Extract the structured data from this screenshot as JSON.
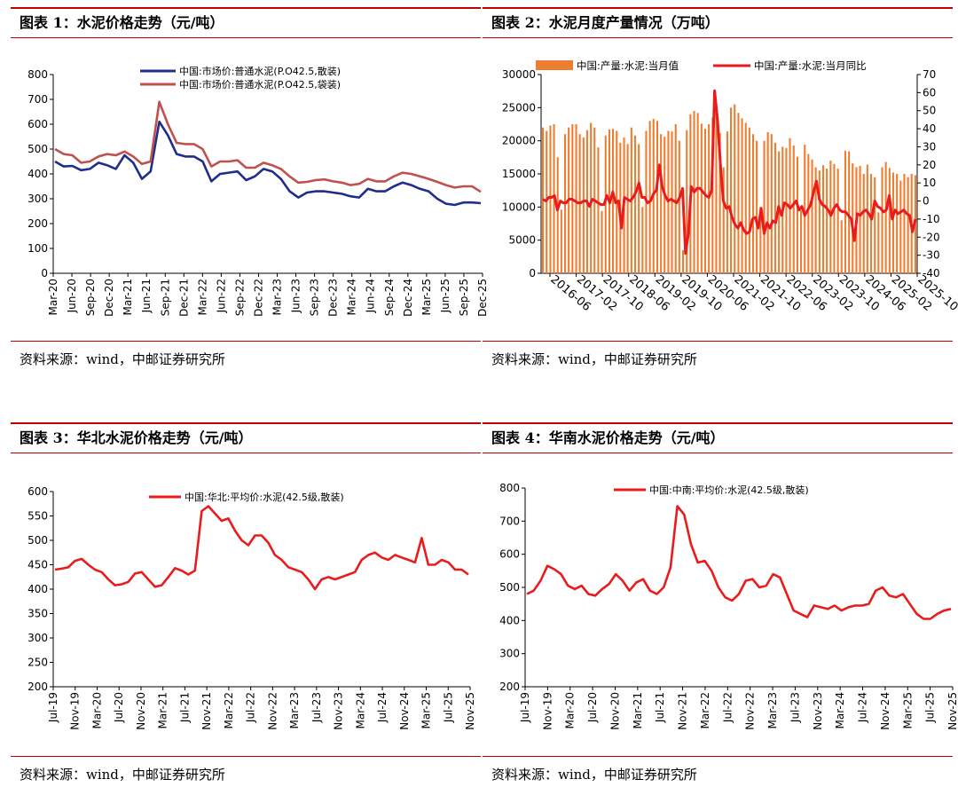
{
  "source_text": "资料来源：wind，中邮证券研究所",
  "chart_data": [
    {
      "id": "c1",
      "type": "line",
      "title": "图表 1：水泥价格走势（元/吨）",
      "ylim": [
        0,
        800
      ],
      "yticks": [
        0,
        100,
        200,
        300,
        400,
        500,
        600,
        700,
        800
      ],
      "xlabels": [
        "Mar-20",
        "Jun-20",
        "Sep-20",
        "Dec-20",
        "Mar-21",
        "Jun-21",
        "Sep-21",
        "Dec-21",
        "Mar-22",
        "Jun-22",
        "Sep-22",
        "Dec-22",
        "Mar-23",
        "Jun-23",
        "Sep-23",
        "Dec-23",
        "Mar-24",
        "Jun-24",
        "Sep-24",
        "Dec-24",
        "Mar-25",
        "Jun-25",
        "Sep-25",
        "Dec-25"
      ],
      "grid": false,
      "legend": "top-center",
      "series": [
        {
          "name": "中国:市场价:普通水泥(P.O42.5,散装)",
          "color": "#1f2d8c",
          "values": [
            450,
            430,
            432,
            415,
            420,
            445,
            435,
            420,
            475,
            445,
            380,
            410,
            610,
            555,
            480,
            470,
            470,
            450,
            370,
            400,
            405,
            410,
            375,
            390,
            420,
            410,
            380,
            330,
            305,
            325,
            330,
            330,
            325,
            320,
            310,
            305,
            340,
            330,
            330,
            350,
            365,
            355,
            340,
            330,
            300,
            280,
            275,
            285,
            285,
            282
          ]
        },
        {
          "name": "中国:市场价:普通水泥(P.O42.5,袋装)",
          "color": "#c0504d",
          "values": [
            500,
            480,
            475,
            445,
            450,
            470,
            480,
            475,
            490,
            470,
            440,
            450,
            690,
            600,
            525,
            520,
            520,
            500,
            430,
            450,
            450,
            455,
            425,
            425,
            445,
            435,
            420,
            390,
            365,
            368,
            375,
            378,
            370,
            365,
            355,
            360,
            380,
            370,
            370,
            390,
            405,
            400,
            390,
            380,
            368,
            355,
            345,
            350,
            350,
            328
          ]
        }
      ]
    },
    {
      "id": "c2",
      "type": "bar+line",
      "title": "图表 2：水泥月度产量情况（万吨）",
      "ylim": [
        0,
        30000
      ],
      "yticks": [
        0,
        5000,
        10000,
        15000,
        20000,
        25000,
        30000
      ],
      "y2lim": [
        -40,
        70
      ],
      "y2ticks": [
        -40,
        -30,
        -20,
        -10,
        0,
        10,
        20,
        30,
        40,
        50,
        60,
        70
      ],
      "xlabels": [
        "2016-06",
        "2017-02",
        "2017-10",
        "2018-06",
        "2019-02",
        "2019-10",
        "2020-06",
        "2021-02",
        "2021-10",
        "2022-06",
        "2023-02",
        "2023-10",
        "2024-06",
        "2025-02",
        "2025-10"
      ],
      "grid": false,
      "legend": "top",
      "series": [
        {
          "name": "中国:产量:水泥:当月值",
          "color": "#ed7d31",
          "values": [
            22000,
            21500,
            22300,
            22500,
            17500,
            9600,
            21000,
            22000,
            22500,
            22500,
            21000,
            20500,
            21600,
            22700,
            22000,
            19000,
            9400,
            20800,
            21700,
            21800,
            21500,
            19700,
            20500,
            19500,
            22000,
            20800,
            19500,
            10000,
            21500,
            23000,
            23300,
            23000,
            21000,
            20600,
            21500,
            21400,
            22500,
            20000,
            3500,
            21600,
            24000,
            24500,
            24200,
            22600,
            21800,
            22500,
            23500,
            25000,
            21200,
            16000,
            21400,
            25000,
            25500,
            24200,
            23400,
            22700,
            22000,
            21000,
            20000,
            10000,
            20000,
            21300,
            21000,
            19700,
            18400,
            19100,
            18900,
            20400,
            19300,
            17600,
            9500,
            19400,
            18000,
            17200,
            16000,
            15500,
            16300,
            15800,
            17000,
            16500,
            15800,
            8000,
            18500,
            18400,
            16600,
            16000,
            16200,
            15000,
            16400,
            15000,
            14500,
            9200,
            16000,
            16800,
            15900,
            15200,
            15000,
            14000,
            15000,
            14500,
            15000,
            14800
          ]
        },
        {
          "name": "中国:产量:水泥:当月同比",
          "color": "#e81c1c",
          "values": [
            1,
            0,
            2,
            2,
            3,
            -5,
            0,
            -1,
            -1,
            1,
            1,
            0,
            -1,
            -1,
            0,
            0,
            -3,
            1,
            0,
            -1,
            -2,
            -2,
            3,
            -1,
            5,
            -1,
            0,
            -15,
            2,
            1,
            0,
            2,
            5,
            10,
            2,
            2,
            -1,
            0,
            4,
            6,
            20,
            8,
            3,
            0,
            1,
            0,
            -1,
            2,
            7,
            -29,
            -18,
            8,
            5,
            7,
            7,
            5,
            3,
            2,
            6,
            61,
            45,
            20,
            0,
            -4,
            -3,
            -9,
            -13,
            -15,
            -12,
            -16,
            -18,
            -17,
            -10,
            -9,
            -15,
            -4,
            -18,
            -12,
            -15,
            -11,
            -12,
            -3,
            -8,
            -1,
            -2,
            -4,
            -2,
            0,
            -5,
            -3,
            -8,
            -5,
            -2,
            5,
            11,
            1,
            -2,
            -3,
            -5,
            -8,
            -4,
            -2,
            -5,
            -6,
            -6,
            -8,
            -10,
            -22,
            -7,
            -8,
            -6,
            -5,
            -7,
            -10,
            0,
            -3,
            -4,
            -6,
            -5,
            3,
            -10,
            -5,
            -7,
            -6,
            -5,
            -7,
            -8,
            -17,
            -10
          ]
        }
      ]
    },
    {
      "id": "c3",
      "type": "line",
      "title": "图表 3：华北水泥价格走势（元/吨）",
      "ylim": [
        200,
        600
      ],
      "yticks": [
        200,
        250,
        300,
        350,
        400,
        450,
        500,
        550,
        600
      ],
      "xlabels": [
        "Jul-19",
        "Nov-19",
        "Mar-20",
        "Jul-20",
        "Nov-20",
        "Mar-21",
        "Jul-21",
        "Nov-21",
        "Mar-22",
        "Jul-22",
        "Nov-22",
        "Mar-23",
        "Jul-23",
        "Nov-23",
        "Mar-24",
        "Jul-24",
        "Nov-24",
        "Mar-25",
        "Jul-25",
        "Nov-25"
      ],
      "grid": false,
      "legend": "top-center",
      "series": [
        {
          "name": "中国:华北:平均价:水泥(42.5级,散装)",
          "color": "#e81c1c",
          "values": [
            440,
            442,
            445,
            458,
            462,
            450,
            440,
            435,
            420,
            408,
            410,
            415,
            432,
            435,
            420,
            405,
            408,
            425,
            443,
            438,
            430,
            438,
            560,
            570,
            555,
            540,
            545,
            520,
            500,
            490,
            510,
            510,
            495,
            470,
            460,
            445,
            440,
            435,
            420,
            400,
            420,
            425,
            420,
            425,
            430,
            435,
            460,
            470,
            475,
            465,
            460,
            470,
            465,
            460,
            455,
            505,
            450,
            450,
            460,
            455,
            440,
            440,
            430
          ]
        }
      ]
    },
    {
      "id": "c4",
      "type": "line",
      "title": "图表 4：华南水泥价格走势（元/吨）",
      "ylim": [
        200,
        800
      ],
      "yticks": [
        200,
        300,
        400,
        500,
        600,
        700,
        800
      ],
      "xlabels": [
        "Jul-19",
        "Nov-19",
        "Mar-20",
        "Jul-20",
        "Nov-20",
        "Mar-21",
        "Jul-21",
        "Nov-21",
        "Mar-22",
        "Jul-22",
        "Nov-22",
        "Mar-23",
        "Jul-23",
        "Nov-23",
        "Mar-24",
        "Jul-24",
        "Nov-24",
        "Mar-25",
        "Jul-25",
        "Nov-25"
      ],
      "grid": false,
      "legend": "top-center",
      "series": [
        {
          "name": "中国:中南:平均价:水泥(42.5级,散装)",
          "color": "#e81c1c",
          "values": [
            480,
            490,
            520,
            565,
            555,
            540,
            505,
            495,
            505,
            480,
            475,
            495,
            510,
            540,
            520,
            490,
            515,
            525,
            490,
            480,
            500,
            560,
            745,
            720,
            630,
            575,
            580,
            550,
            500,
            470,
            460,
            480,
            520,
            525,
            500,
            505,
            540,
            530,
            480,
            430,
            420,
            410,
            445,
            440,
            435,
            445,
            430,
            440,
            445,
            445,
            450,
            490,
            500,
            475,
            470,
            480,
            450,
            420,
            405,
            405,
            420,
            430,
            435
          ]
        }
      ]
    }
  ]
}
